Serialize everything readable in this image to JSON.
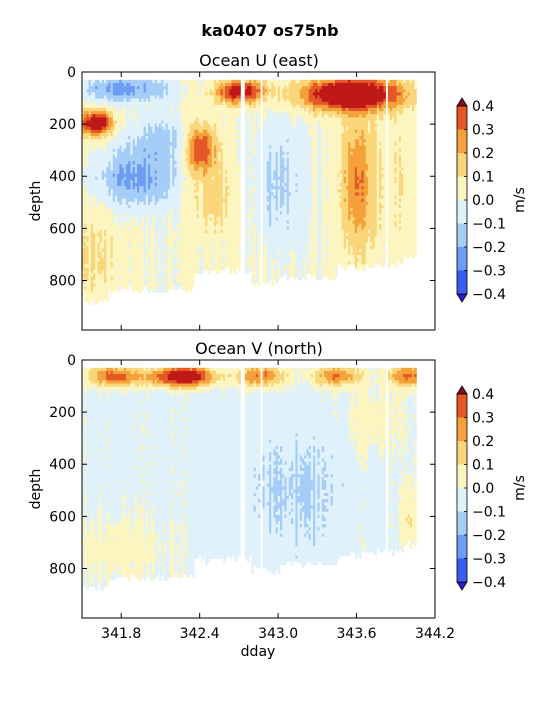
{
  "figure": {
    "title": "ka0407 os75nb"
  },
  "chart_data": [
    {
      "type": "heatmap",
      "title": "Ocean U (east)",
      "xlabel": "",
      "ylabel": "depth",
      "ylim": [
        990,
        0
      ],
      "y_ticks": [
        "0",
        "200",
        "400",
        "600",
        "800"
      ],
      "x_ticks": [],
      "colorbar": {
        "label": "m/s",
        "ticks": [
          "0.4",
          "0.3",
          "0.2",
          "0.1",
          "0.0",
          "−0.1",
          "−0.2",
          "−0.3",
          "−0.4"
        ],
        "levels": [
          -0.4,
          -0.3,
          -0.2,
          -0.1,
          0.0,
          0.1,
          0.2,
          0.3,
          0.4
        ],
        "colors": [
          "#2a1ad8",
          "#3a5cf0",
          "#6c9cf4",
          "#a5cdf8",
          "#dff1fb",
          "#fdf5bf",
          "#fbd57a",
          "#f5a13a",
          "#e35826",
          "#bf1818",
          "#7f0a20"
        ],
        "extend": "both"
      }
    },
    {
      "type": "heatmap",
      "title": "Ocean V (north)",
      "xlabel": "dday",
      "ylabel": "depth",
      "xlim": [
        341.5,
        344.2
      ],
      "ylim": [
        990,
        0
      ],
      "x_ticks": [
        "341.8",
        "342.4",
        "343.0",
        "343.6",
        "344.2"
      ],
      "y_ticks": [
        "0",
        "200",
        "400",
        "600",
        "800"
      ],
      "colorbar": {
        "label": "m/s",
        "ticks": [
          "0.4",
          "0.3",
          "0.2",
          "0.1",
          "0.0",
          "−0.1",
          "−0.2",
          "−0.3",
          "−0.4"
        ],
        "levels": [
          -0.4,
          -0.3,
          -0.2,
          -0.1,
          0.0,
          0.1,
          0.2,
          0.3,
          0.4
        ],
        "colors": [
          "#2a1ad8",
          "#3a5cf0",
          "#6c9cf4",
          "#a5cdf8",
          "#dff1fb",
          "#fdf5bf",
          "#fbd57a",
          "#f5a13a",
          "#e35826",
          "#bf1818",
          "#7f0a20"
        ],
        "extend": "both"
      }
    }
  ]
}
